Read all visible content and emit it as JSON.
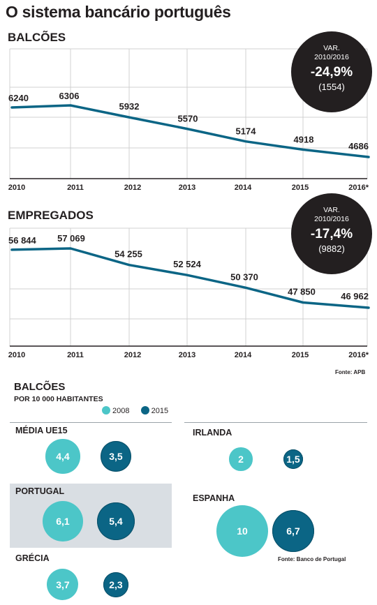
{
  "title": "O sistema bancário português",
  "colors": {
    "line": "#0b6585",
    "c2008": "#4cc6c8",
    "c2015": "#0b6585",
    "badge": "#231f20",
    "highlight": "#d9dee3"
  },
  "chart_data": [
    {
      "type": "line",
      "title": "BALCÕES",
      "categories": [
        "2010",
        "2011",
        "2012",
        "2013",
        "2014",
        "2015",
        "2016*"
      ],
      "values": [
        6240,
        6306,
        5932,
        5570,
        5174,
        4918,
        4686
      ],
      "value_labels": [
        "6240",
        "6306",
        "5932",
        "5570",
        "5174",
        "4918",
        "4686"
      ],
      "grid": true,
      "badge": {
        "line1": "VAR.",
        "line2": "2010/2016",
        "pct": "-24,9%",
        "abs": "(1554)"
      }
    },
    {
      "type": "line",
      "title": "EMPREGADOS",
      "categories": [
        "2010",
        "2011",
        "2012",
        "2013",
        "2014",
        "2015",
        "2016*"
      ],
      "values": [
        56844,
        57069,
        54255,
        52524,
        50370,
        47850,
        46962
      ],
      "value_labels": [
        "56 844",
        "57 069",
        "54 255",
        "52 524",
        "50 370",
        "47 850",
        "46 962"
      ],
      "grid": true,
      "badge": {
        "line1": "VAR.",
        "line2": "2010/2016",
        "pct": "-17,4%",
        "abs": "(9882)"
      },
      "source": "Fonte: APB"
    },
    {
      "type": "bubble",
      "title": "BALCÕES",
      "subtitle": "POR 10 000 HABITANTES",
      "legend": [
        "2008",
        "2015"
      ],
      "groups": [
        {
          "name": "MÉDIA UE15",
          "values": [
            4.4,
            3.5
          ],
          "labels": [
            "4,4",
            "3,5"
          ]
        },
        {
          "name": "PORTUGAL",
          "values": [
            6.1,
            5.4
          ],
          "labels": [
            "6,1",
            "5,4"
          ],
          "highlight": true
        },
        {
          "name": "GRÉCIA",
          "values": [
            3.7,
            2.3
          ],
          "labels": [
            "3,7",
            "2,3"
          ]
        },
        {
          "name": "IRLANDA",
          "values": [
            2,
            1.5
          ],
          "labels": [
            "2",
            "1,5"
          ]
        },
        {
          "name": "ESPANHA",
          "values": [
            10,
            6.7
          ],
          "labels": [
            "10",
            "6,7"
          ]
        }
      ],
      "source": "Fonte: Banco de Portugal"
    }
  ]
}
